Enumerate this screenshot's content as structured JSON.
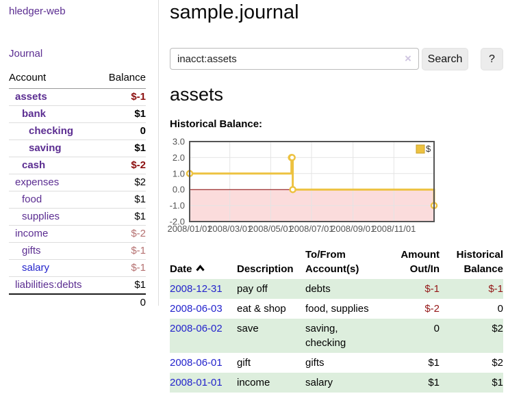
{
  "sidebar": {
    "brand": "hledger-web",
    "nav_journal": "Journal",
    "accounts_table": {
      "headers": {
        "account": "Account",
        "balance": "Balance"
      },
      "rows": [
        {
          "account": "assets",
          "balance": "$-1"
        },
        {
          "account": "bank",
          "balance": "$1"
        },
        {
          "account": "checking",
          "balance": "0"
        },
        {
          "account": "saving",
          "balance": "$1"
        },
        {
          "account": "cash",
          "balance": "$-2"
        },
        {
          "account": "expenses",
          "balance": "$2"
        },
        {
          "account": "food",
          "balance": "$1"
        },
        {
          "account": "supplies",
          "balance": "$1"
        },
        {
          "account": "income",
          "balance": "$-2"
        },
        {
          "account": "gifts",
          "balance": "$-1"
        },
        {
          "account": "salary",
          "balance": "$-1"
        },
        {
          "account": "liabilities:debts",
          "balance": "$1"
        }
      ],
      "total": "0"
    }
  },
  "main_header": {
    "title": "sample.journal"
  },
  "search": {
    "value": "inacct:assets",
    "clear": "×",
    "submit": "Search",
    "help": "?"
  },
  "account_view": {
    "heading": "assets",
    "section_label": "Historical Balance:"
  },
  "chart_data": {
    "type": "line",
    "step": true,
    "title": "Historical Balance",
    "xlim": [
      "2008-01-01",
      "2008-12-31"
    ],
    "ylim": [
      -2,
      3
    ],
    "y_ticks": [
      3.0,
      2.0,
      1.0,
      0.0,
      -1.0,
      -2.0
    ],
    "x_ticks": [
      "2008/01/01",
      "2008/03/01",
      "2008/05/01",
      "2008/07/01",
      "2008/09/01",
      "2008/11/01"
    ],
    "legend_position": "top-right",
    "series": [
      {
        "name": "$",
        "color": "#edc240",
        "legend_border": "#c9a12c",
        "points": [
          [
            "2008-01-01",
            1
          ],
          [
            "2008-06-01",
            2
          ],
          [
            "2008-06-02",
            2
          ],
          [
            "2008-06-03",
            0
          ],
          [
            "2008-12-31",
            -1
          ]
        ]
      }
    ],
    "colors": {
      "negative_region": "#fbdcdc",
      "zero_line": "#8b0000",
      "grid": "#e4e4e4",
      "border": "#545454",
      "tick_text": "#545454"
    }
  },
  "register": {
    "columns": [
      "Date",
      "Description",
      "To/From Account(s)",
      "Amount Out/In",
      "Historical Balance"
    ],
    "sort": {
      "column": "Date",
      "direction": "ascending"
    },
    "rows": [
      {
        "date": "2008-12-31",
        "description": "pay off",
        "accounts": "debts",
        "amount": "$-1",
        "balance": "$-1"
      },
      {
        "date": "2008-06-03",
        "description": "eat & shop",
        "accounts": "food, supplies",
        "amount": "$-2",
        "balance": "0"
      },
      {
        "date": "2008-06-02",
        "description": "save",
        "accounts": "saving, checking",
        "amount": "0",
        "balance": "$2"
      },
      {
        "date": "2008-06-01",
        "description": "gift",
        "accounts": "gifts",
        "amount": "$1",
        "balance": "$2"
      },
      {
        "date": "2008-01-01",
        "description": "income",
        "accounts": "salary",
        "amount": "$1",
        "balance": "$1"
      }
    ]
  }
}
